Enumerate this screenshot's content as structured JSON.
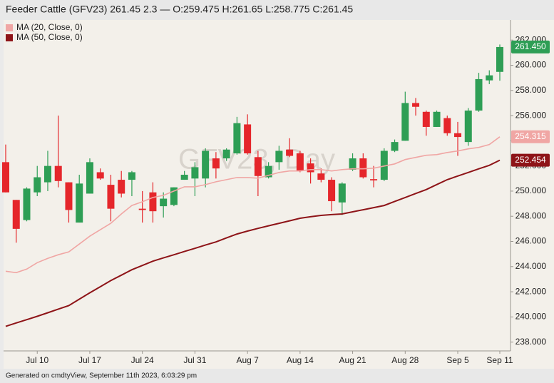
{
  "chart_data": {
    "type": "candlestick",
    "title": "Feeder Cattle (GFV23) 261.45 2.3 — O:259.475 H:261.65 L:258.775 C:261.45",
    "watermark": "GFV23, Day",
    "footer": "Generated on cmdtyView, September 11th 2023, 6:03:29 pm",
    "categories": [
      null,
      null,
      null,
      "Jul 10",
      null,
      null,
      null,
      null,
      "Jul 17",
      null,
      null,
      null,
      null,
      "Jul 24",
      null,
      null,
      null,
      null,
      "Jul 31",
      null,
      null,
      null,
      null,
      "Aug 7",
      null,
      null,
      null,
      null,
      "Aug 14",
      null,
      null,
      null,
      null,
      "Aug 21",
      null,
      null,
      null,
      null,
      "Aug 28",
      null,
      null,
      null,
      null,
      "Sep 5",
      null,
      null,
      null,
      "Sep 11"
    ],
    "up_color": "#2e9e55",
    "down_color": "#e5262b",
    "open": [
      252.3,
      249.3,
      247.7,
      249.9,
      250.7,
      252.0,
      250.7,
      247.5,
      249.8,
      251.5,
      250.5,
      250.9,
      250.9,
      248.6,
      249.9,
      248.8,
      248.9,
      250.9,
      251.0,
      251.0,
      252.6,
      252.6,
      253.0,
      255.3,
      252.7,
      251.1,
      252.3,
      253.3,
      253.0,
      252.2,
      251.4,
      250.9,
      249.1,
      251.7,
      252.6,
      250.95,
      250.9,
      253.2,
      254.0,
      257.0,
      256.3,
      255.1,
      255.8,
      254.6,
      253.9,
      256.4,
      258.8,
      259.475
    ],
    "high": [
      253.7,
      249.3,
      250.3,
      252.0,
      253.2,
      256.0,
      250.7,
      251.3,
      252.6,
      251.8,
      251.3,
      251.6,
      251.6,
      250.0,
      250.7,
      249.9,
      250.3,
      251.6,
      252.3,
      253.4,
      253.1,
      253.4,
      255.9,
      256.1,
      253.2,
      252.3,
      253.6,
      254.2,
      253.2,
      252.6,
      251.8,
      251.1,
      250.7,
      253.0,
      253.0,
      252.0,
      253.4,
      254.1,
      257.9,
      257.4,
      256.4,
      256.4,
      256.0,
      255.5,
      256.6,
      259.4,
      259.6,
      261.65
    ],
    "low": [
      249.9,
      245.9,
      247.6,
      249.6,
      250.0,
      250.3,
      247.5,
      247.5,
      249.8,
      250.9,
      247.6,
      249.5,
      249.6,
      247.5,
      247.5,
      247.9,
      248.8,
      250.9,
      249.6,
      250.3,
      251.0,
      252.4,
      252.9,
      252.9,
      249.6,
      251.0,
      251.7,
      252.7,
      251.5,
      250.6,
      250.7,
      248.4,
      248.1,
      251.6,
      251.0,
      250.3,
      250.8,
      253.1,
      254.0,
      256.0,
      254.4,
      255.1,
      254.4,
      252.8,
      253.6,
      256.3,
      258.5,
      258.775
    ],
    "close": [
      249.9,
      247.0,
      250.2,
      251.1,
      252.0,
      250.8,
      248.5,
      250.6,
      252.3,
      251.0,
      248.6,
      249.8,
      251.5,
      248.5,
      248.4,
      249.4,
      250.3,
      251.3,
      251.9,
      253.2,
      251.8,
      253.3,
      255.4,
      253.0,
      251.2,
      252.0,
      253.2,
      252.8,
      251.6,
      251.5,
      250.9,
      249.2,
      250.6,
      252.6,
      251.1,
      250.85,
      253.2,
      253.9,
      257.0,
      256.7,
      255.1,
      256.3,
      254.6,
      254.3,
      256.4,
      258.9,
      259.2,
      261.45
    ],
    "close_labels": [
      null,
      null,
      null,
      null,
      null,
      null,
      null,
      null,
      null,
      null,
      null,
      null,
      null,
      null,
      null,
      null,
      null,
      null,
      null,
      null,
      null,
      null,
      null,
      null,
      null,
      null,
      null,
      null,
      null,
      null,
      null,
      null,
      null,
      null,
      null,
      null,
      null,
      null,
      null,
      null,
      null,
      null,
      null,
      null,
      null,
      null,
      null,
      "261.450"
    ],
    "series": [
      {
        "name": "MA (20, Close, 0)",
        "color": "#f0a6a4",
        "values": [
          243.63,
          243.52,
          243.8,
          244.31,
          244.66,
          244.94,
          245.17,
          245.79,
          246.42,
          246.93,
          247.44,
          248.18,
          248.86,
          249.15,
          249.49,
          249.66,
          250.0,
          250.34,
          250.34,
          250.51,
          250.74,
          250.91,
          251.08,
          251.08,
          251.03,
          251.25,
          251.48,
          251.6,
          251.6,
          251.71,
          251.71,
          251.6,
          251.71,
          251.77,
          251.77,
          251.82,
          251.99,
          252.16,
          252.51,
          252.68,
          252.85,
          252.9,
          253.07,
          253.19,
          253.36,
          253.47,
          253.7,
          254.315
        ],
        "value_labels": [
          null,
          null,
          null,
          null,
          null,
          null,
          null,
          null,
          null,
          null,
          null,
          null,
          null,
          null,
          null,
          null,
          null,
          null,
          null,
          null,
          null,
          null,
          null,
          null,
          null,
          null,
          null,
          null,
          null,
          null,
          null,
          null,
          null,
          null,
          null,
          null,
          null,
          null,
          null,
          null,
          null,
          null,
          null,
          null,
          null,
          null,
          null,
          "254.315"
        ]
      },
      {
        "name": "MA (50, Close, 0)",
        "color": "#8e1418",
        "values": [
          239.25,
          239.52,
          239.78,
          240.05,
          240.33,
          240.62,
          240.9,
          241.41,
          241.92,
          242.4,
          242.89,
          243.32,
          243.75,
          244.09,
          244.43,
          244.69,
          244.94,
          245.2,
          245.45,
          245.71,
          245.96,
          246.28,
          246.59,
          246.82,
          247.04,
          247.24,
          247.44,
          247.64,
          247.84,
          247.96,
          248.07,
          248.13,
          248.18,
          248.35,
          248.52,
          248.69,
          248.86,
          249.18,
          249.49,
          249.81,
          250.12,
          250.52,
          250.91,
          251.2,
          251.48,
          251.77,
          252.05,
          252.454
        ],
        "value_labels": [
          null,
          null,
          null,
          null,
          null,
          null,
          null,
          null,
          null,
          null,
          null,
          null,
          null,
          null,
          null,
          null,
          null,
          null,
          null,
          null,
          null,
          null,
          null,
          null,
          null,
          null,
          null,
          null,
          null,
          null,
          null,
          null,
          null,
          null,
          null,
          null,
          null,
          null,
          null,
          null,
          null,
          null,
          null,
          null,
          null,
          null,
          null,
          "252.454"
        ]
      }
    ],
    "ylim": [
      237.3,
      263.6
    ],
    "yticks": [
      {
        "value": 238,
        "label": "238.000"
      },
      {
        "value": 240,
        "label": "240.000"
      },
      {
        "value": 242,
        "label": "242.000"
      },
      {
        "value": 244,
        "label": "244.000"
      },
      {
        "value": 246,
        "label": "246.000"
      },
      {
        "value": 248,
        "label": "248.000"
      },
      {
        "value": 250,
        "label": "250.000"
      },
      {
        "value": 252,
        "label": "252.000"
      },
      {
        "value": 254,
        "label": "254.000"
      },
      {
        "value": 256,
        "label": "256.000"
      },
      {
        "value": 258,
        "label": "258.000"
      },
      {
        "value": 260,
        "label": "260.000"
      },
      {
        "value": 262,
        "label": "262.000"
      }
    ],
    "grid": false,
    "legend": "upper left"
  }
}
